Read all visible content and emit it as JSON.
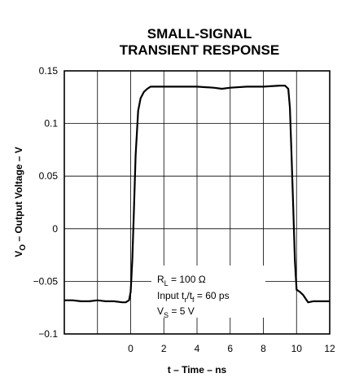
{
  "chart_data": {
    "type": "line",
    "title_lines": [
      "SMALL-SIGNAL",
      "TRANSIENT RESPONSE"
    ],
    "xlabel": "t – Time – ns",
    "ylabel": {
      "sym": "V",
      "sub": "O",
      "rest": " – Output Voltage – V"
    },
    "xlim": [
      -4,
      12
    ],
    "ylim": [
      -0.1,
      0.15
    ],
    "x_ticks": [
      0,
      2,
      4,
      6,
      8,
      10,
      12
    ],
    "x_tick_labels": [
      "0",
      "2",
      "4",
      "6",
      "8",
      "10",
      "12"
    ],
    "x_grid": [
      -4,
      -2,
      0,
      2,
      4,
      6,
      8,
      10,
      12
    ],
    "y_ticks": [
      -0.1,
      -0.05,
      0,
      0.05,
      0.1,
      0.15
    ],
    "y_tick_labels": [
      "−0.1",
      "−0.05",
      "0",
      "0.05",
      "0.1",
      "0.15"
    ],
    "grid": true,
    "series": [
      {
        "x": [
          -4,
          -3.5,
          -3,
          -2.5,
          -2,
          -1.5,
          -1,
          -0.5,
          -0.3,
          -0.1,
          0,
          0.1,
          0.2,
          0.3,
          0.45,
          0.6,
          0.8,
          1.0,
          1.2,
          1.5,
          2,
          3,
          4,
          5,
          5.5,
          6,
          7,
          8,
          9,
          9.3,
          9.5,
          9.6,
          9.7,
          9.8,
          9.9,
          10.0,
          10.2,
          10.4,
          10.7,
          11,
          11.5,
          12
        ],
        "y": [
          -0.068,
          -0.068,
          -0.069,
          -0.069,
          -0.068,
          -0.069,
          -0.069,
          -0.07,
          -0.07,
          -0.068,
          -0.06,
          -0.03,
          0.02,
          0.07,
          0.112,
          0.124,
          0.13,
          0.133,
          0.135,
          0.135,
          0.135,
          0.135,
          0.135,
          0.134,
          0.133,
          0.134,
          0.135,
          0.135,
          0.136,
          0.136,
          0.133,
          0.115,
          0.07,
          0.02,
          -0.03,
          -0.058,
          -0.06,
          -0.063,
          -0.07,
          -0.069,
          -0.069,
          -0.069
        ]
      }
    ],
    "annotation": {
      "line1": {
        "sym": "R",
        "sub": "L",
        "rest": " = 100 Ω"
      },
      "line2": {
        "a": "Input t",
        "sub1": "r",
        "b": "/t",
        "sub2": "f",
        "c": " = 60 ps"
      },
      "line3": {
        "sym": "V",
        "sub": "S",
        "rest": " = 5 V"
      }
    }
  }
}
